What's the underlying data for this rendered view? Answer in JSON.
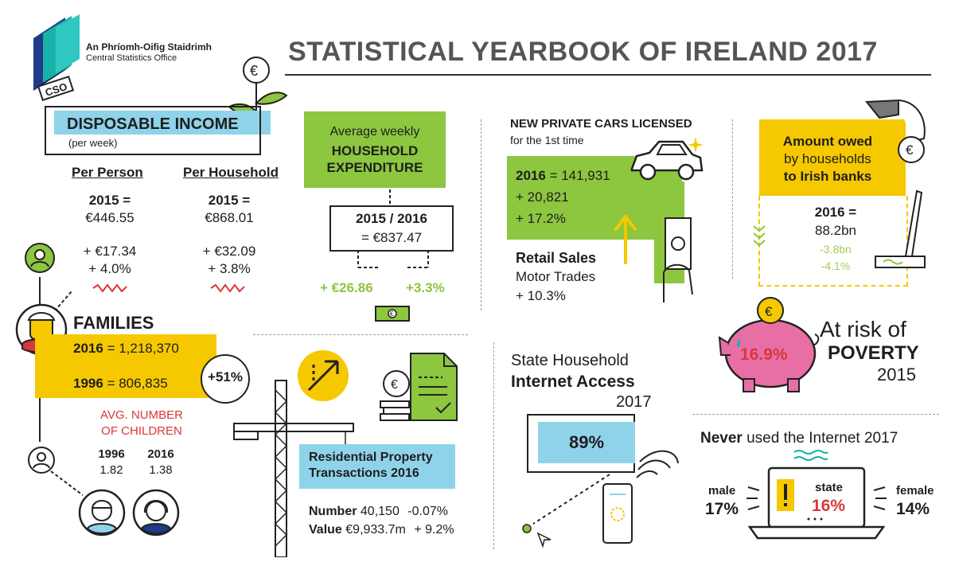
{
  "header": {
    "org_irish": "An Phríomh-Oifig Staidrimh",
    "org_english": "Central Statistics Office",
    "logo_letters": "CSO",
    "title": "STATISTICAL YEARBOOK OF IRELAND 2017"
  },
  "disposable_income": {
    "title": "DISPOSABLE INCOME",
    "subtitle": "(per week)",
    "per_person": {
      "label": "Per Person",
      "year_line": "2015 =",
      "value": "€446.55",
      "change_abs": "+ €17.34",
      "change_pct": "+ 4.0%"
    },
    "per_household": {
      "label": "Per Household",
      "year_line": "2015 =",
      "value": "€868.01",
      "change_abs": "+ €32.09",
      "change_pct": "+ 3.8%"
    }
  },
  "expenditure": {
    "line1": "Average weekly",
    "line2": "HOUSEHOLD",
    "line3": "EXPENDITURE",
    "years": "2015 / 2016",
    "value": "= €837.47",
    "change_abs": "+ €26.86",
    "change_pct": "+3.3%",
    "euro_symbol": "€"
  },
  "cars": {
    "title": "NEW PRIVATE CARS LICENSED",
    "subtitle": "for the 1st time",
    "year": "2016",
    "value": "= 141,931",
    "change_abs": "+ 20,821",
    "change_pct": "+ 17.2%",
    "retail_title": "Retail Sales",
    "retail_sub": "Motor Trades",
    "retail_change": "+ 10.3%"
  },
  "owed": {
    "line1": "Amount owed",
    "line2": "by households",
    "line3": "to Irish banks",
    "year_line": "2016 =",
    "value": "88.2bn",
    "change_abs": "-3.8bn",
    "change_pct": "-4.1%",
    "euro_symbol": "€"
  },
  "families": {
    "title": "FAMILIES",
    "y2016_label": "2016",
    "y2016_value": "= 1,218,370",
    "y1996_label": "1996",
    "y1996_value": "= 806,835",
    "change_pct": "+51%",
    "avg_children_line1": "AVG. NUMBER",
    "avg_children_line2": "OF CHILDREN",
    "children": [
      {
        "year": "1996",
        "value": "1.82"
      },
      {
        "year": "2016",
        "value": "1.38"
      }
    ]
  },
  "residential": {
    "title_line1": "Residential Property",
    "title_line2": "Transactions 2016",
    "number_label": "Number",
    "number_value": "40,150",
    "number_change": "-0.07%",
    "value_label": "Value",
    "value_value": "€9,933.7m",
    "value_change": "+ 9.2%",
    "euro_symbol": "€"
  },
  "internet": {
    "line1": "State Household",
    "line2": "Internet Access",
    "year": "2017",
    "value": "89%"
  },
  "poverty": {
    "value": "16.9%",
    "line1": "At risk of",
    "line2": "POVERTY",
    "year": "2015",
    "euro_symbol": "€"
  },
  "never_used": {
    "title_bold": "Never",
    "title_rest": "used the Internet 2017",
    "male_label": "male",
    "male_value": "17%",
    "state_label": "state",
    "state_value": "16%",
    "female_label": "female",
    "female_value": "14%"
  },
  "colors": {
    "green": "#8dc63f",
    "yellow": "#f5c800",
    "blue": "#8fd3ea",
    "red": "#d9383a",
    "pink": "#e86fa6",
    "teal": "#1fa8a0"
  },
  "icons": [
    "cso-logo",
    "euro-plant-icon",
    "money-note-icon",
    "car-icon",
    "hand-banknote-icon",
    "up-arrow-icon",
    "hand-coin-icon",
    "pen-icon",
    "person-icon",
    "family-man-icon",
    "boy-icon",
    "girl-icon",
    "crane-icon",
    "growth-arrow-icon",
    "document-icon",
    "coin-stack-icon",
    "wifi-phone-icon",
    "cursor-icon",
    "piggy-bank-icon",
    "laptop-warning-icon"
  ]
}
